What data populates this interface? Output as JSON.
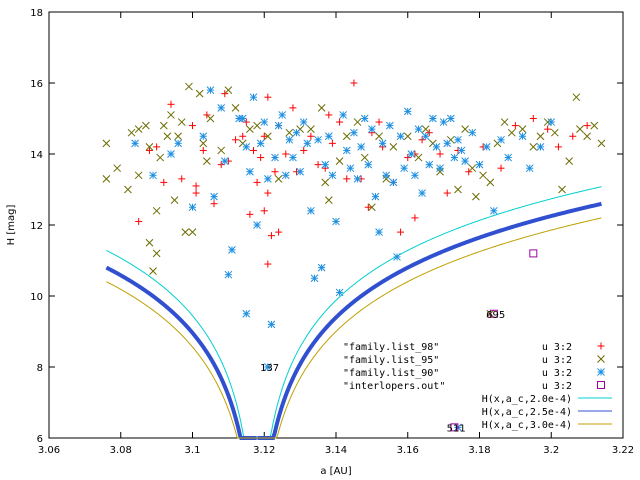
{
  "chart_data": {
    "type": "scatter",
    "xlabel": "a [AU]",
    "ylabel": "H [mag]",
    "xlim": [
      3.06,
      3.22
    ],
    "ylim": [
      6,
      18
    ],
    "xticks": [
      "3.06",
      "3.08",
      "3.1",
      "3.12",
      "3.14",
      "3.16",
      "3.18",
      "3.2",
      "3.22"
    ],
    "yticks": [
      "6",
      "8",
      "10",
      "12",
      "14",
      "16",
      "18"
    ],
    "grid": false,
    "legend_placement": "bottom-right",
    "file_labels": [
      "\"family.list_98\"",
      "\"family.list_95\"",
      "\"family.list_90\"",
      "\"interlopers.out\""
    ],
    "legend_using": [
      "u 3:2",
      "u 3:2",
      "u 3:2",
      "u 3:2"
    ],
    "curve_labels": [
      "H(x,a_c,2.0e-4)",
      "H(x,a_c,2.5e-4)",
      "H(x,a_c,3.0e-4)"
    ],
    "annotations": [
      {
        "text": "137",
        "x": 3.1215,
        "y": 8.0
      },
      {
        "text": "695",
        "x": 3.1845,
        "y": 9.5
      },
      {
        "text": "511",
        "x": 3.1735,
        "y": 6.3
      }
    ],
    "series": [
      {
        "marker": "plus",
        "color": "#ff0000",
        "points": [
          [
            3.085,
            12.1
          ],
          [
            3.088,
            14.1
          ],
          [
            3.09,
            14.2
          ],
          [
            3.092,
            13.2
          ],
          [
            3.094,
            15.4
          ],
          [
            3.097,
            13.3
          ],
          [
            3.1,
            14.8
          ],
          [
            3.101,
            13.1
          ],
          [
            3.101,
            12.9
          ],
          [
            3.103,
            14.1
          ],
          [
            3.104,
            15.1
          ],
          [
            3.106,
            12.6
          ],
          [
            3.108,
            13.7
          ],
          [
            3.109,
            15.7
          ],
          [
            3.11,
            13.8
          ],
          [
            3.112,
            14.4
          ],
          [
            3.114,
            14.5
          ],
          [
            3.115,
            14.9
          ],
          [
            3.116,
            12.3
          ],
          [
            3.117,
            14.1
          ],
          [
            3.119,
            13.9
          ],
          [
            3.12,
            14.5
          ],
          [
            3.121,
            15.6
          ],
          [
            3.121,
            12.9
          ],
          [
            3.122,
            11.7
          ],
          [
            3.123,
            13.5
          ],
          [
            3.124,
            14.8
          ],
          [
            3.126,
            14.0
          ],
          [
            3.128,
            15.3
          ],
          [
            3.129,
            13.5
          ],
          [
            3.131,
            14.1
          ],
          [
            3.133,
            14.5
          ],
          [
            3.135,
            13.7
          ],
          [
            3.137,
            13.6
          ],
          [
            3.139,
            14.3
          ],
          [
            3.141,
            14.9
          ],
          [
            3.143,
            13.3
          ],
          [
            3.145,
            16.0
          ],
          [
            3.147,
            13.3
          ],
          [
            3.149,
            12.5
          ],
          [
            3.15,
            14.6
          ],
          [
            3.153,
            14.2
          ],
          [
            3.156,
            13.2
          ],
          [
            3.158,
            11.8
          ],
          [
            3.16,
            13.9
          ],
          [
            3.162,
            14.0
          ],
          [
            3.164,
            14.4
          ],
          [
            3.166,
            14.6
          ],
          [
            3.169,
            14.0
          ],
          [
            3.171,
            12.9
          ],
          [
            3.174,
            14.1
          ],
          [
            3.177,
            13.5
          ],
          [
            3.181,
            14.2
          ],
          [
            3.186,
            13.6
          ],
          [
            3.19,
            14.8
          ],
          [
            3.195,
            15.0
          ],
          [
            3.199,
            14.7
          ],
          [
            3.202,
            14.2
          ],
          [
            3.206,
            14.5
          ],
          [
            3.21,
            14.8
          ],
          [
            3.118,
            13.2
          ],
          [
            3.12,
            12.4
          ],
          [
            3.123,
            13.9
          ],
          [
            3.138,
            15.1
          ],
          [
            3.152,
            14.9
          ],
          [
            3.162,
            12.2
          ],
          [
            3.121,
            10.9
          ],
          [
            3.124,
            11.8
          ]
        ]
      },
      {
        "marker": "cross",
        "color": "#6b6b00",
        "points": [
          [
            3.076,
            14.3
          ],
          [
            3.076,
            13.3
          ],
          [
            3.079,
            13.6
          ],
          [
            3.082,
            13.0
          ],
          [
            3.083,
            14.6
          ],
          [
            3.085,
            14.7
          ],
          [
            3.085,
            13.4
          ],
          [
            3.087,
            14.8
          ],
          [
            3.088,
            14.2
          ],
          [
            3.088,
            11.5
          ],
          [
            3.089,
            10.7
          ],
          [
            3.09,
            11.2
          ],
          [
            3.09,
            12.4
          ],
          [
            3.091,
            13.9
          ],
          [
            3.092,
            14.8
          ],
          [
            3.093,
            14.5
          ],
          [
            3.094,
            15.1
          ],
          [
            3.095,
            12.7
          ],
          [
            3.096,
            14.5
          ],
          [
            3.097,
            14.9
          ],
          [
            3.098,
            11.8
          ],
          [
            3.099,
            15.9
          ],
          [
            3.1,
            11.8
          ],
          [
            3.102,
            15.7
          ],
          [
            3.103,
            14.3
          ],
          [
            3.104,
            13.8
          ],
          [
            3.105,
            15.0
          ],
          [
            3.108,
            14.1
          ],
          [
            3.11,
            15.8
          ],
          [
            3.112,
            15.3
          ],
          [
            3.114,
            14.3
          ],
          [
            3.116,
            14.7
          ],
          [
            3.118,
            14.8
          ],
          [
            3.121,
            14.5
          ],
          [
            3.124,
            13.3
          ],
          [
            3.127,
            14.6
          ],
          [
            3.13,
            14.7
          ],
          [
            3.133,
            14.7
          ],
          [
            3.136,
            15.3
          ],
          [
            3.137,
            13.2
          ],
          [
            3.138,
            12.7
          ],
          [
            3.141,
            13.8
          ],
          [
            3.143,
            14.5
          ],
          [
            3.146,
            14.9
          ],
          [
            3.148,
            13.9
          ],
          [
            3.15,
            12.5
          ],
          [
            3.152,
            14.5
          ],
          [
            3.154,
            13.3
          ],
          [
            3.156,
            14.2
          ],
          [
            3.16,
            14.5
          ],
          [
            3.163,
            13.9
          ],
          [
            3.165,
            14.7
          ],
          [
            3.167,
            14.3
          ],
          [
            3.169,
            13.5
          ],
          [
            3.172,
            14.4
          ],
          [
            3.174,
            13.0
          ],
          [
            3.176,
            14.7
          ],
          [
            3.178,
            13.6
          ],
          [
            3.179,
            12.8
          ],
          [
            3.181,
            13.4
          ],
          [
            3.183,
            13.2
          ],
          [
            3.185,
            14.3
          ],
          [
            3.187,
            14.9
          ],
          [
            3.189,
            14.6
          ],
          [
            3.192,
            14.7
          ],
          [
            3.195,
            14.2
          ],
          [
            3.197,
            14.5
          ],
          [
            3.199,
            14.9
          ],
          [
            3.201,
            14.6
          ],
          [
            3.203,
            13.0
          ],
          [
            3.205,
            13.8
          ],
          [
            3.207,
            15.6
          ],
          [
            3.208,
            14.7
          ],
          [
            3.21,
            14.5
          ],
          [
            3.212,
            14.8
          ],
          [
            3.214,
            14.3
          ],
          [
            3.183,
            9.5
          ]
        ]
      },
      {
        "marker": "star",
        "color": "#1e8fe0",
        "points": [
          [
            3.084,
            14.3
          ],
          [
            3.089,
            13.4
          ],
          [
            3.094,
            14.0
          ],
          [
            3.096,
            14.3
          ],
          [
            3.1,
            12.5
          ],
          [
            3.103,
            14.5
          ],
          [
            3.105,
            15.8
          ],
          [
            3.106,
            12.8
          ],
          [
            3.108,
            15.3
          ],
          [
            3.109,
            13.8
          ],
          [
            3.11,
            10.6
          ],
          [
            3.111,
            11.3
          ],
          [
            3.113,
            15.0
          ],
          [
            3.114,
            15.0
          ],
          [
            3.115,
            14.2
          ],
          [
            3.116,
            13.5
          ],
          [
            3.117,
            15.6
          ],
          [
            3.118,
            12.0
          ],
          [
            3.119,
            14.3
          ],
          [
            3.12,
            14.9
          ],
          [
            3.121,
            13.3
          ],
          [
            3.122,
            9.2
          ],
          [
            3.123,
            13.9
          ],
          [
            3.124,
            14.8
          ],
          [
            3.125,
            15.1
          ],
          [
            3.126,
            13.4
          ],
          [
            3.127,
            14.4
          ],
          [
            3.128,
            13.9
          ],
          [
            3.129,
            14.6
          ],
          [
            3.13,
            13.5
          ],
          [
            3.131,
            14.9
          ],
          [
            3.132,
            14.3
          ],
          [
            3.133,
            12.4
          ],
          [
            3.134,
            10.5
          ],
          [
            3.135,
            14.4
          ],
          [
            3.136,
            10.8
          ],
          [
            3.137,
            13.7
          ],
          [
            3.138,
            14.5
          ],
          [
            3.139,
            13.4
          ],
          [
            3.14,
            12.1
          ],
          [
            3.141,
            10.1
          ],
          [
            3.142,
            15.1
          ],
          [
            3.143,
            14.1
          ],
          [
            3.144,
            13.6
          ],
          [
            3.145,
            14.6
          ],
          [
            3.146,
            13.3
          ],
          [
            3.147,
            14.2
          ],
          [
            3.148,
            15.0
          ],
          [
            3.149,
            13.7
          ],
          [
            3.15,
            14.7
          ],
          [
            3.151,
            12.8
          ],
          [
            3.152,
            11.8
          ],
          [
            3.153,
            14.3
          ],
          [
            3.154,
            13.4
          ],
          [
            3.155,
            14.8
          ],
          [
            3.156,
            13.2
          ],
          [
            3.157,
            11.1
          ],
          [
            3.158,
            14.5
          ],
          [
            3.159,
            13.6
          ],
          [
            3.16,
            15.2
          ],
          [
            3.161,
            14.0
          ],
          [
            3.162,
            13.4
          ],
          [
            3.163,
            14.7
          ],
          [
            3.164,
            12.9
          ],
          [
            3.165,
            14.5
          ],
          [
            3.166,
            13.7
          ],
          [
            3.167,
            15.0
          ],
          [
            3.168,
            14.2
          ],
          [
            3.169,
            13.6
          ],
          [
            3.17,
            14.9
          ],
          [
            3.171,
            14.3
          ],
          [
            3.172,
            15.0
          ],
          [
            3.173,
            13.9
          ],
          [
            3.174,
            14.4
          ],
          [
            3.175,
            14.1
          ],
          [
            3.176,
            13.8
          ],
          [
            3.178,
            14.6
          ],
          [
            3.18,
            13.7
          ],
          [
            3.182,
            14.2
          ],
          [
            3.184,
            12.4
          ],
          [
            3.186,
            14.4
          ],
          [
            3.188,
            13.9
          ],
          [
            3.192,
            14.5
          ],
          [
            3.194,
            13.6
          ],
          [
            3.197,
            14.2
          ],
          [
            3.2,
            14.9
          ],
          [
            3.115,
            9.5
          ],
          [
            3.121,
            8.0
          ],
          [
            3.174,
            6.3
          ]
        ]
      },
      {
        "marker": "square",
        "color": "#a000a0",
        "points": [
          [
            3.195,
            11.2
          ],
          [
            3.184,
            9.5
          ],
          [
            3.173,
            6.3
          ]
        ]
      }
    ],
    "curves": [
      {
        "label_index": 0,
        "color": "#00d0d0",
        "width": 1,
        "c": 0.0002
      },
      {
        "label_index": 1,
        "color": "#3050d0",
        "width": 4,
        "c": 0.00025
      },
      {
        "label_index": 2,
        "color": "#c0a000",
        "width": 1,
        "c": 0.0003
      }
    ],
    "curve_params": {
      "a_c": 3.118,
      "x_min": 3.076,
      "x_max": 3.214
    }
  }
}
